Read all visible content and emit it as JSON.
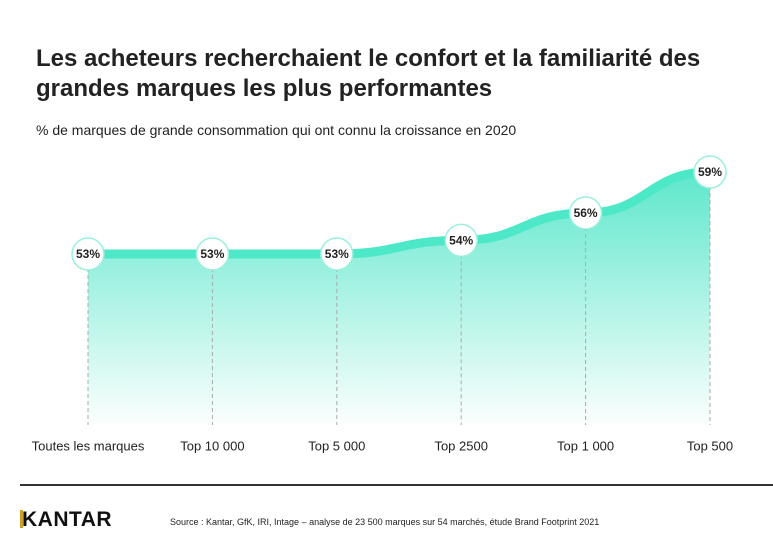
{
  "chart_data": {
    "type": "area",
    "title": "Les acheteurs recherchaient le confort et la familiarité des grandes marques les plus performantes",
    "subtitle": "% de marques de grande consommation qui ont connu la croissance en 2020",
    "categories": [
      "Toutes les marques",
      "Top 10 000",
      "Top 5 000",
      "Top 2500",
      "Top 1 000",
      "Top 500"
    ],
    "values": [
      53,
      53,
      53,
      54,
      56,
      59
    ],
    "value_labels": [
      "53%",
      "53%",
      "53%",
      "54%",
      "56%",
      "59%"
    ],
    "color": "#4de8c8",
    "source": "Source : Kantar, GfK, IRI, Intage – analyse de 23 500 marques sur 54 marchés, étude Brand Footprint 2021",
    "logo": "KANTAR"
  }
}
